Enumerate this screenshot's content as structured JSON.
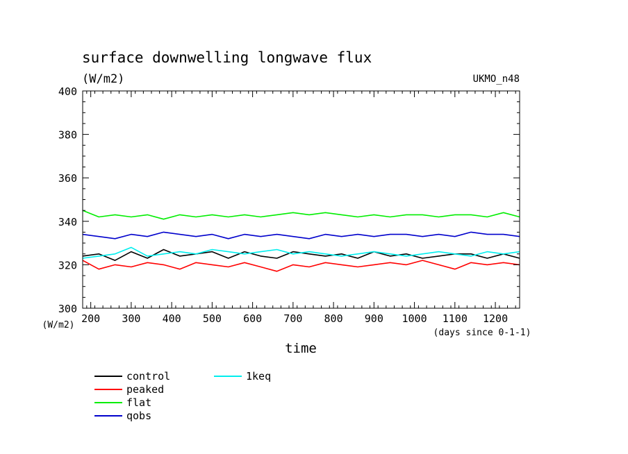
{
  "chart_data": {
    "type": "line",
    "title": "surface downwelling longwave flux",
    "units_label": "(W/m2)",
    "model_label": "UKMO_n48",
    "xlabel": "time",
    "x_units_label": "(days since 0-1-1)",
    "y_units_label": "(W/m2)",
    "xlim": [
      180,
      1260
    ],
    "ylim": [
      300,
      400
    ],
    "x_ticks": [
      200,
      300,
      400,
      500,
      600,
      700,
      800,
      900,
      1000,
      1100,
      1200
    ],
    "x_tick_labels": [
      "200",
      "300",
      "400",
      "500",
      "600",
      "700",
      "800",
      "900",
      "1000",
      "1100",
      "1200"
    ],
    "y_ticks": [
      300,
      320,
      340,
      360,
      380,
      400
    ],
    "y_tick_labels": [
      "300",
      "320",
      "340",
      "360",
      "380",
      "400"
    ],
    "grid": false,
    "legend_placement": "below-left",
    "series": [
      {
        "name": "control",
        "color": "#000000",
        "x": [
          180,
          220,
          260,
          300,
          340,
          380,
          420,
          460,
          500,
          540,
          580,
          620,
          660,
          700,
          740,
          780,
          820,
          860,
          900,
          940,
          980,
          1020,
          1060,
          1100,
          1140,
          1180,
          1220,
          1260
        ],
        "values": [
          324,
          325,
          322,
          326,
          323,
          327,
          324,
          325,
          326,
          323,
          326,
          324,
          323,
          326,
          325,
          324,
          325,
          323,
          326,
          324,
          325,
          323,
          324,
          325,
          325,
          323,
          325,
          323
        ]
      },
      {
        "name": "peaked",
        "color": "#ff0000",
        "x": [
          180,
          220,
          260,
          300,
          340,
          380,
          420,
          460,
          500,
          540,
          580,
          620,
          660,
          700,
          740,
          780,
          820,
          860,
          900,
          940,
          980,
          1020,
          1060,
          1100,
          1140,
          1180,
          1220,
          1260
        ],
        "values": [
          322,
          318,
          320,
          319,
          321,
          320,
          318,
          321,
          320,
          319,
          321,
          319,
          317,
          320,
          319,
          321,
          320,
          319,
          320,
          321,
          320,
          322,
          320,
          318,
          321,
          320,
          321,
          320
        ]
      },
      {
        "name": "flat",
        "color": "#00ee00",
        "x": [
          180,
          220,
          260,
          300,
          340,
          380,
          420,
          460,
          500,
          540,
          580,
          620,
          660,
          700,
          740,
          780,
          820,
          860,
          900,
          940,
          980,
          1020,
          1060,
          1100,
          1140,
          1180,
          1220,
          1260
        ],
        "values": [
          345,
          342,
          343,
          342,
          343,
          341,
          343,
          342,
          343,
          342,
          343,
          342,
          343,
          344,
          343,
          344,
          343,
          342,
          343,
          342,
          343,
          343,
          342,
          343,
          343,
          342,
          344,
          342
        ]
      },
      {
        "name": "qobs",
        "color": "#0000cc",
        "x": [
          180,
          220,
          260,
          300,
          340,
          380,
          420,
          460,
          500,
          540,
          580,
          620,
          660,
          700,
          740,
          780,
          820,
          860,
          900,
          940,
          980,
          1020,
          1060,
          1100,
          1140,
          1180,
          1220,
          1260
        ],
        "values": [
          334,
          333,
          332,
          334,
          333,
          335,
          334,
          333,
          334,
          332,
          334,
          333,
          334,
          333,
          332,
          334,
          333,
          334,
          333,
          334,
          334,
          333,
          334,
          333,
          335,
          334,
          334,
          333
        ]
      },
      {
        "name": "1keq",
        "color": "#00eeee",
        "x": [
          180,
          220,
          260,
          300,
          340,
          380,
          420,
          460,
          500,
          540,
          580,
          620,
          660,
          700,
          740,
          780,
          820,
          860,
          900,
          940,
          980,
          1020,
          1060,
          1100,
          1140,
          1180,
          1220,
          1260
        ],
        "values": [
          323,
          324,
          325,
          328,
          324,
          325,
          326,
          325,
          327,
          326,
          325,
          326,
          327,
          325,
          326,
          325,
          324,
          325,
          326,
          325,
          324,
          325,
          326,
          325,
          324,
          326,
          325,
          326
        ]
      }
    ]
  }
}
